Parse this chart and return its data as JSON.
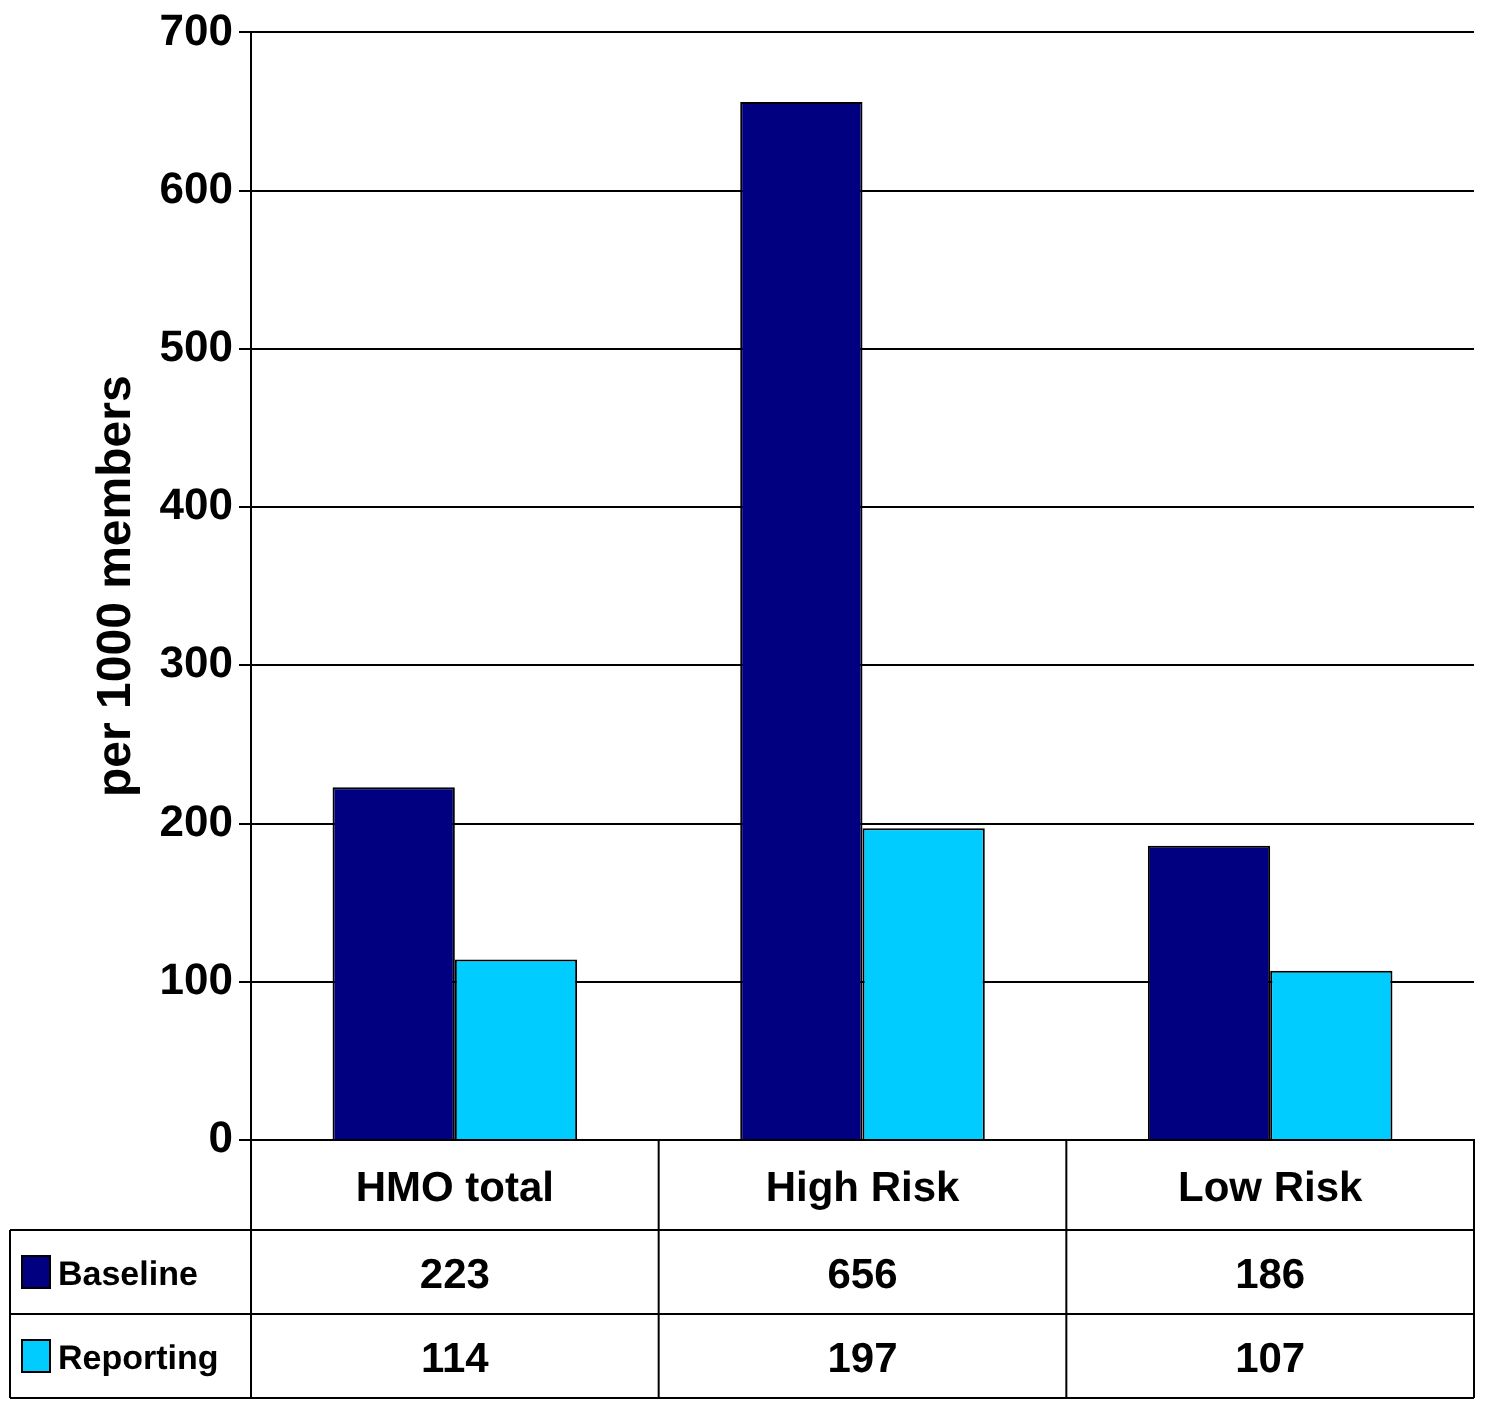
{
  "chart_data": {
    "type": "bar",
    "ylabel": "per 1000 members",
    "categories": [
      "HMO total",
      "High Risk",
      "Low Risk"
    ],
    "series": [
      {
        "name": "Baseline",
        "color": "#000080",
        "values": [
          223,
          656,
          186
        ]
      },
      {
        "name": "Reporting",
        "color": "#00ccff",
        "values": [
          114,
          197,
          107
        ]
      }
    ],
    "ylim": [
      0,
      700
    ],
    "yticks": [
      0,
      100,
      200,
      300,
      400,
      500,
      600,
      700
    ],
    "grid": "y",
    "legend": "bottom left",
    "data_labels": true
  }
}
